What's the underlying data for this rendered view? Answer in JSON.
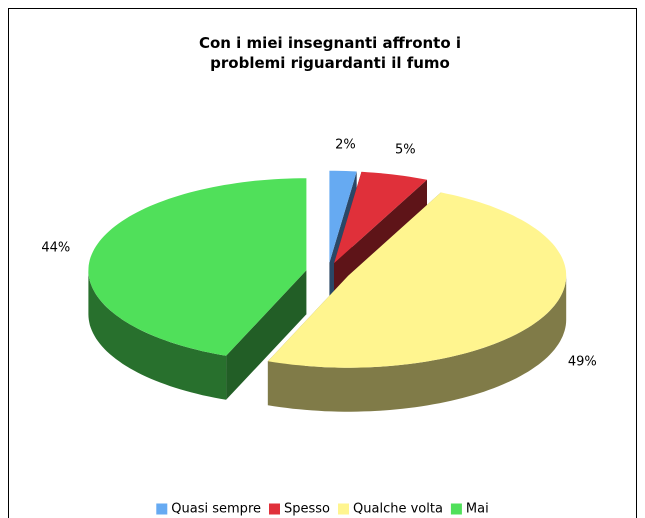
{
  "chart_data": {
    "type": "pie",
    "title": "Con i miei insegnanti affronto i problemi riguardanti il fumo",
    "categories": [
      "Quasi sempre",
      "Spesso",
      "Qualche volta",
      "Mai"
    ],
    "values": [
      2,
      5,
      49,
      44
    ],
    "value_labels": [
      "2%",
      "5%",
      "49%",
      "44%"
    ],
    "colors": [
      "#66aaf2",
      "#e0303a",
      "#fff58f",
      "#50e05a"
    ],
    "legend": "bottom"
  }
}
